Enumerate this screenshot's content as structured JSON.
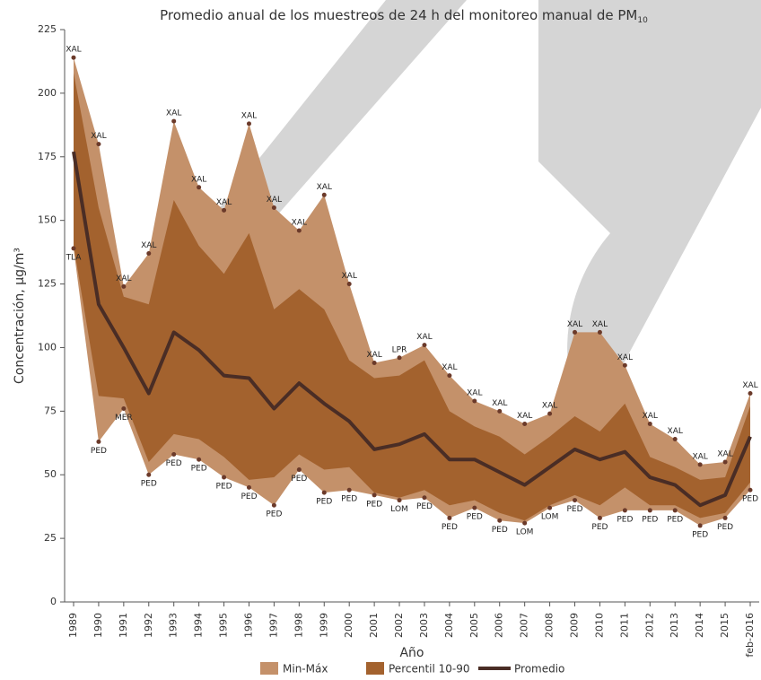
{
  "chart_data": {
    "type": "band-line",
    "title": "Promedio anual de los muestreos de 24 h del monitoreo manual de PM",
    "title_subscript": "10",
    "y_label": "Concentración, µg/m³",
    "x_label": "Año",
    "categories": [
      "1989",
      "1990",
      "1991",
      "1992",
      "1993",
      "1994",
      "1995",
      "1996",
      "1997",
      "1998",
      "1999",
      "2000",
      "2001",
      "2002",
      "2003",
      "2004",
      "2005",
      "2006",
      "2007",
      "2008",
      "2009",
      "2010",
      "2011",
      "2012",
      "2013",
      "2014",
      "2015",
      "feb-2016"
    ],
    "ylim": [
      0,
      225
    ],
    "yticks": [
      0,
      25,
      50,
      75,
      100,
      125,
      150,
      175,
      200,
      225
    ],
    "series": [
      {
        "name": "Min-Máx",
        "color": "#c4916a",
        "kind": "band",
        "upper": [
          214,
          180,
          124,
          137,
          189,
          163,
          154,
          188,
          155,
          146,
          160,
          125,
          94,
          96,
          101,
          89,
          79,
          75,
          70,
          74,
          106,
          106,
          93,
          70,
          64,
          54,
          55,
          82
        ],
        "lower": [
          139,
          63,
          76,
          50,
          58,
          56,
          49,
          45,
          38,
          52,
          43,
          44,
          42,
          40,
          41,
          33,
          37,
          32,
          31,
          37,
          40,
          33,
          36,
          36,
          36,
          30,
          33,
          44
        ],
        "upper_labels": [
          "XAL",
          "XAL",
          "XAL",
          "XAL",
          "XAL",
          "XAL",
          "XAL",
          "XAL",
          "XAL",
          "XAL",
          "XAL",
          "XAL",
          "XAL",
          "LPR",
          "XAL",
          "XAL",
          "XAL",
          "XAL",
          "XAL",
          "XAL",
          "XAL",
          "XAL",
          "XAL",
          "XAL",
          "XAL",
          "XAL",
          "XAL",
          "XAL"
        ],
        "lower_labels": [
          "TLA",
          "PED",
          "MER",
          "PED",
          "PED",
          "PED",
          "PED",
          "PED",
          "PED",
          "PED",
          "PED",
          "PED",
          "PED",
          "LOM",
          "PED",
          "PED",
          "PED",
          "PED",
          "LOM",
          "LOM",
          "PED",
          "PED",
          "PED",
          "PED",
          "PED",
          "PED",
          "PED",
          "PED"
        ]
      },
      {
        "name": "Percentil 10-90",
        "color": "#a3622e",
        "kind": "band",
        "upper": [
          208,
          155,
          120,
          117,
          158,
          140,
          129,
          145,
          115,
          123,
          115,
          95,
          88,
          89,
          95,
          75,
          69,
          65,
          58,
          65,
          73,
          67,
          78,
          57,
          53,
          48,
          49,
          77
        ],
        "lower": [
          140,
          81,
          80,
          55,
          66,
          64,
          57,
          48,
          49,
          58,
          52,
          53,
          43,
          41,
          44,
          38,
          40,
          35,
          32,
          38,
          42,
          38,
          45,
          38,
          38,
          33,
          35,
          47
        ]
      },
      {
        "name": "Promedio",
        "color": "#4a2d25",
        "kind": "line",
        "values": [
          177,
          117,
          100,
          82,
          106,
          99,
          89,
          88,
          76,
          86,
          78,
          71,
          60,
          62,
          66,
          56,
          56,
          51,
          46,
          53,
          60,
          56,
          59,
          49,
          46,
          38,
          42,
          65
        ]
      }
    ]
  }
}
